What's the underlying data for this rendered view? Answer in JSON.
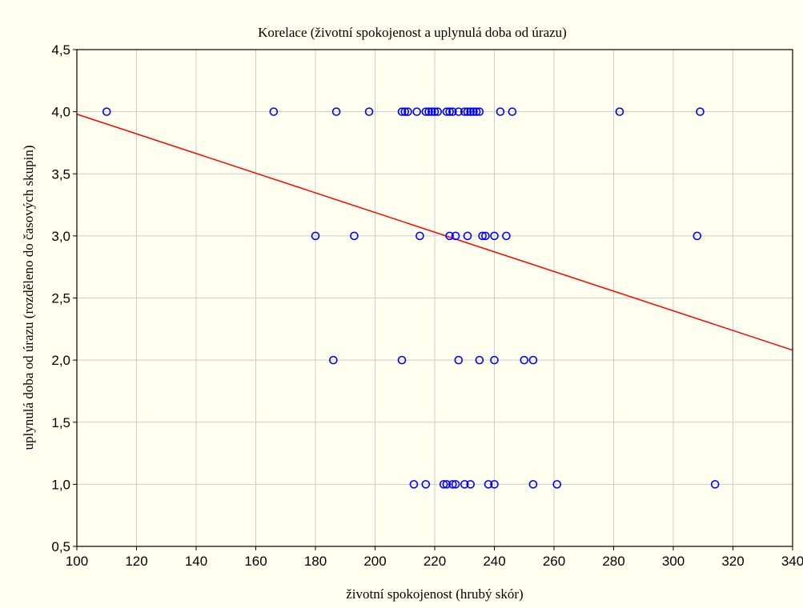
{
  "chart_data": {
    "type": "scatter",
    "title": "Korelace (životní spokojenost a uplynulá doba od úrazu)",
    "xlabel": "životní spokojenost (hrubý skór)",
    "ylabel": "uplynulá doba od úrazu (rozděleno do časových skupin)",
    "xlim": [
      100,
      340
    ],
    "ylim": [
      0.5,
      4.5
    ],
    "x_ticks": [
      "100",
      "120",
      "140",
      "160",
      "180",
      "200",
      "220",
      "240",
      "260",
      "280",
      "300",
      "320",
      "340"
    ],
    "y_ticks": [
      "0,5",
      "1,0",
      "1,5",
      "2,0",
      "2,5",
      "3,0",
      "3,5",
      "4,0",
      "4,5"
    ],
    "grid": true,
    "colors": {
      "points": "#0000ff",
      "regression": "#ff0000",
      "grid": "#cccccc",
      "background": "#fffff0"
    },
    "points": [
      {
        "x": 110,
        "y": 4
      },
      {
        "x": 166,
        "y": 4
      },
      {
        "x": 187,
        "y": 4
      },
      {
        "x": 198,
        "y": 4
      },
      {
        "x": 209,
        "y": 4
      },
      {
        "x": 210,
        "y": 4
      },
      {
        "x": 211,
        "y": 4
      },
      {
        "x": 214,
        "y": 4
      },
      {
        "x": 217,
        "y": 4
      },
      {
        "x": 218,
        "y": 4
      },
      {
        "x": 219,
        "y": 4
      },
      {
        "x": 220,
        "y": 4
      },
      {
        "x": 221,
        "y": 4
      },
      {
        "x": 224,
        "y": 4
      },
      {
        "x": 225,
        "y": 4
      },
      {
        "x": 226,
        "y": 4
      },
      {
        "x": 228,
        "y": 4
      },
      {
        "x": 230,
        "y": 4
      },
      {
        "x": 231,
        "y": 4
      },
      {
        "x": 232,
        "y": 4
      },
      {
        "x": 233,
        "y": 4
      },
      {
        "x": 234,
        "y": 4
      },
      {
        "x": 235,
        "y": 4
      },
      {
        "x": 242,
        "y": 4
      },
      {
        "x": 246,
        "y": 4
      },
      {
        "x": 282,
        "y": 4
      },
      {
        "x": 309,
        "y": 4
      },
      {
        "x": 180,
        "y": 3
      },
      {
        "x": 193,
        "y": 3
      },
      {
        "x": 215,
        "y": 3
      },
      {
        "x": 225,
        "y": 3
      },
      {
        "x": 227,
        "y": 3
      },
      {
        "x": 231,
        "y": 3
      },
      {
        "x": 236,
        "y": 3
      },
      {
        "x": 237,
        "y": 3
      },
      {
        "x": 240,
        "y": 3
      },
      {
        "x": 244,
        "y": 3
      },
      {
        "x": 308,
        "y": 3
      },
      {
        "x": 186,
        "y": 2
      },
      {
        "x": 209,
        "y": 2
      },
      {
        "x": 228,
        "y": 2
      },
      {
        "x": 235,
        "y": 2
      },
      {
        "x": 240,
        "y": 2
      },
      {
        "x": 250,
        "y": 2
      },
      {
        "x": 253,
        "y": 2
      },
      {
        "x": 213,
        "y": 1
      },
      {
        "x": 217,
        "y": 1
      },
      {
        "x": 223,
        "y": 1
      },
      {
        "x": 224,
        "y": 1
      },
      {
        "x": 226,
        "y": 1
      },
      {
        "x": 227,
        "y": 1
      },
      {
        "x": 230,
        "y": 1
      },
      {
        "x": 232,
        "y": 1
      },
      {
        "x": 238,
        "y": 1
      },
      {
        "x": 240,
        "y": 1
      },
      {
        "x": 253,
        "y": 1
      },
      {
        "x": 261,
        "y": 1
      },
      {
        "x": 314,
        "y": 1
      }
    ],
    "regression": {
      "x": [
        100,
        340
      ],
      "y": [
        3.98,
        2.08
      ]
    }
  }
}
